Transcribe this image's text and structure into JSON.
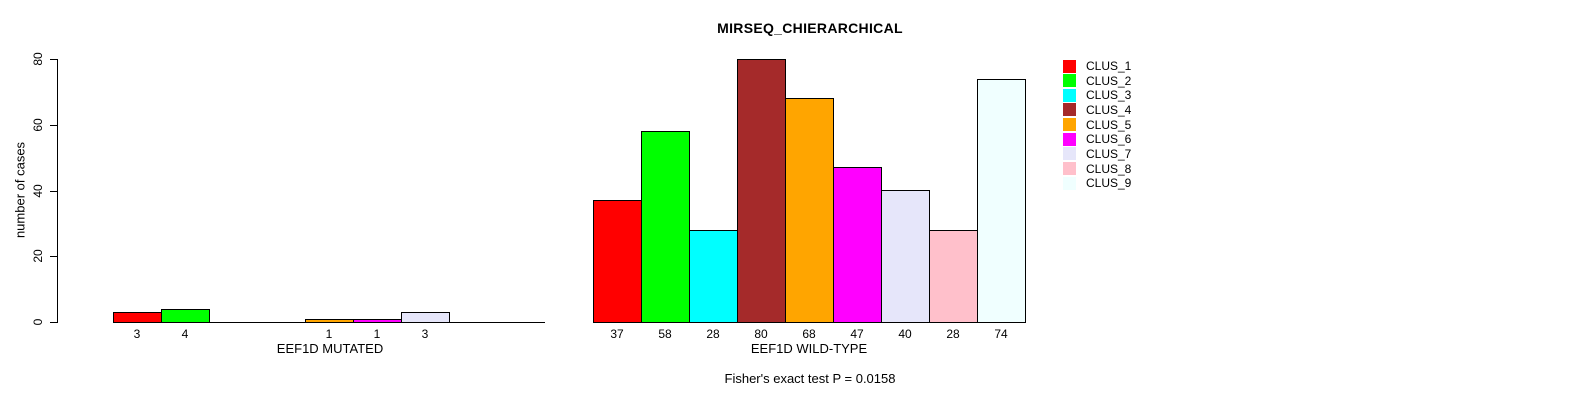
{
  "chart_data": {
    "type": "bar",
    "title": "MIRSEQ_CHIERARCHICAL",
    "ylabel": "number of cases",
    "xlabel": "",
    "categories": [
      "EEF1D MUTATED",
      "EEF1D WILD-TYPE"
    ],
    "series": [
      {
        "name": "CLUS_1",
        "color": "#FF0000",
        "values": [
          3,
          37
        ]
      },
      {
        "name": "CLUS_2",
        "color": "#00FF00",
        "values": [
          4,
          58
        ]
      },
      {
        "name": "CLUS_3",
        "color": "#00FFFF",
        "values": [
          0,
          28
        ]
      },
      {
        "name": "CLUS_4",
        "color": "#A52A2A",
        "values": [
          0,
          80
        ]
      },
      {
        "name": "CLUS_5",
        "color": "#FFA500",
        "values": [
          1,
          68
        ]
      },
      {
        "name": "CLUS_6",
        "color": "#FF00FF",
        "values": [
          1,
          47
        ]
      },
      {
        "name": "CLUS_7",
        "color": "#E6E6FA",
        "values": [
          3,
          40
        ]
      },
      {
        "name": "CLUS_8",
        "color": "#FFC0CB",
        "values": [
          0,
          28
        ]
      },
      {
        "name": "CLUS_9",
        "color": "#F0FFFF",
        "values": [
          0,
          74
        ]
      }
    ],
    "ylim": [
      0,
      80
    ],
    "yticks": [
      0,
      20,
      40,
      60,
      80
    ],
    "bar_value_labels": true,
    "grid": false,
    "legend_position": "right",
    "annotation": "Fisher's exact test P = 0.0158",
    "axis_color": "#000000",
    "bar_border_color": "#000000"
  }
}
